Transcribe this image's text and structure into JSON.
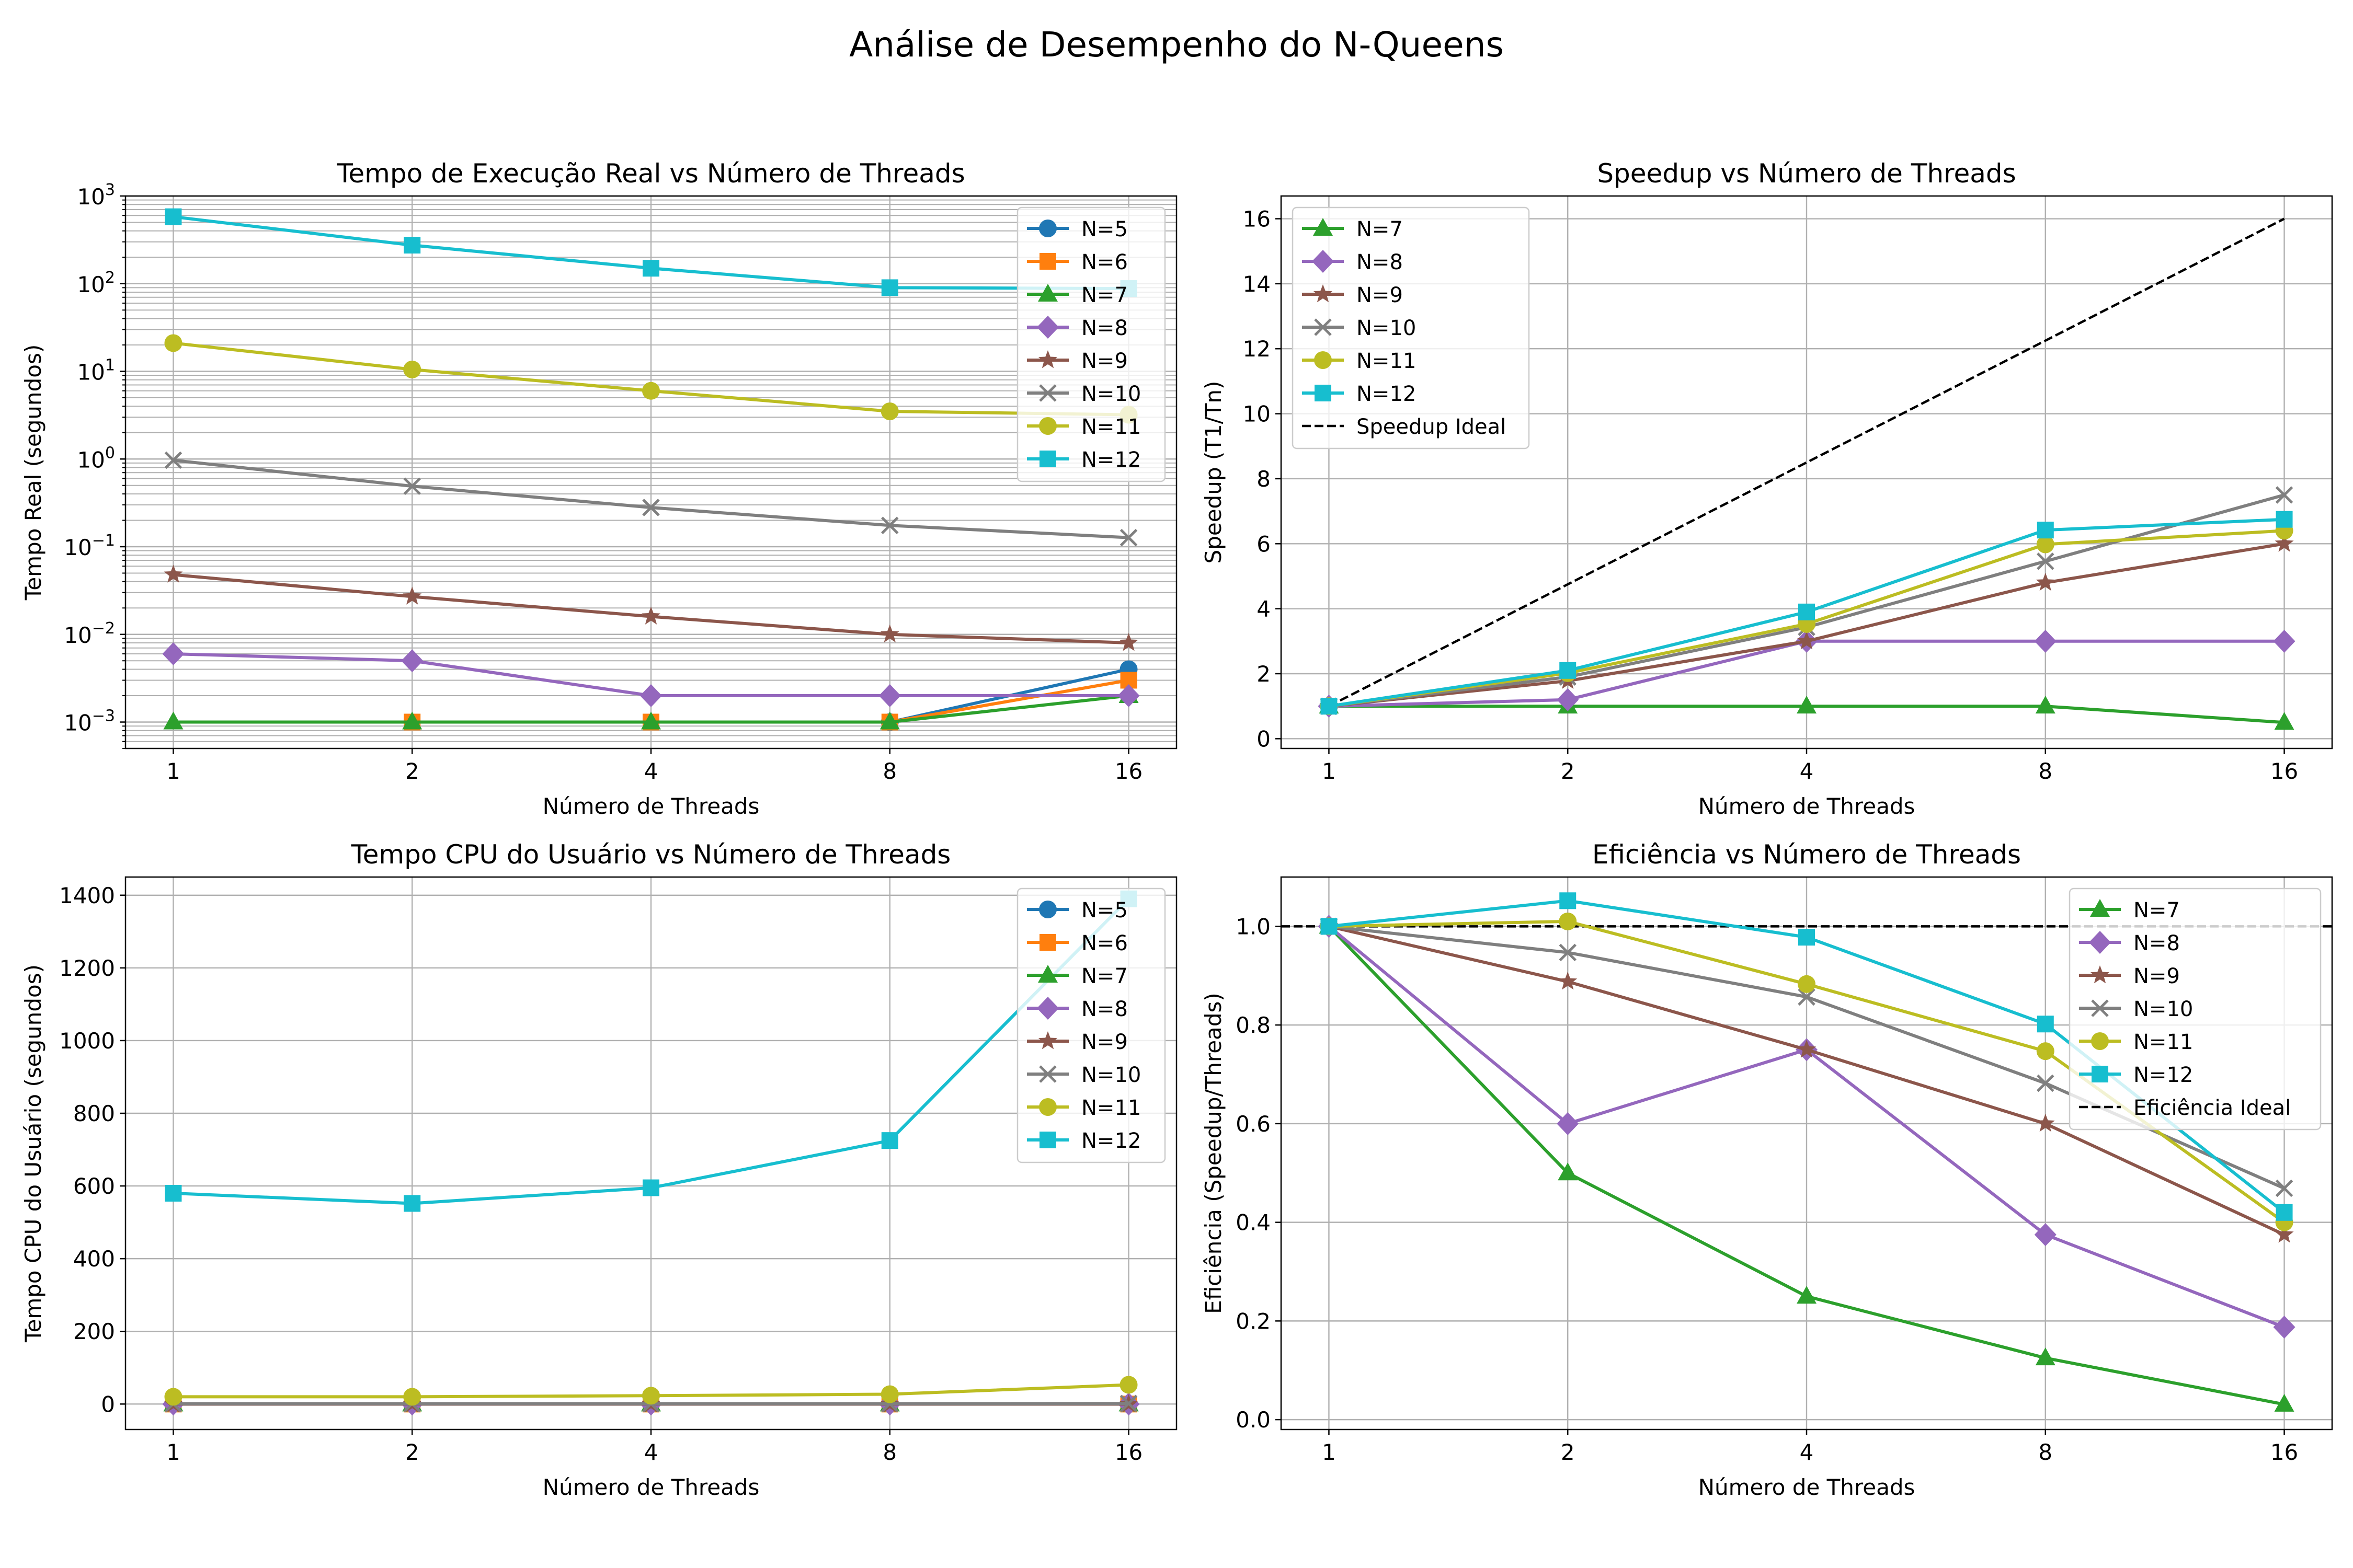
{
  "figure": {
    "suptitle": "Análise de Desempenho do N-Queens"
  },
  "colors": {
    "N=5": "#1f77b4",
    "N=6": "#ff7f0e",
    "N=7": "#2ca02c",
    "N=8": "#9467bd",
    "N=9": "#8c564b",
    "N=10": "#7f7f7f",
    "N=11": "#bcbd22",
    "N=12": "#17becf"
  },
  "markers": {
    "N=5": "circle",
    "N=6": "square",
    "N=7": "triangle",
    "N=8": "diamond",
    "N=9": "star",
    "N=10": "x",
    "N=11": "circle",
    "N=12": "square"
  },
  "chart_data": [
    {
      "type": "line",
      "title": "Tempo de Execução Real vs Número de Threads",
      "xlabel": "Número de Threads",
      "ylabel": "Tempo Real (segundos)",
      "xscale": "log2",
      "yscale": "log",
      "x": [
        1,
        2,
        4,
        8,
        16
      ],
      "xlim": [
        1,
        16
      ],
      "ylim": [
        0.0005,
        1000
      ],
      "yticks": [
        0.001,
        0.01,
        0.1,
        1,
        10,
        100,
        1000
      ],
      "yticklabels": [
        [
          "10",
          "−3"
        ],
        [
          "10",
          "−2"
        ],
        [
          "10",
          "−1"
        ],
        [
          "10",
          "0"
        ],
        [
          "10",
          "1"
        ],
        [
          "10",
          "2"
        ],
        [
          "10",
          "3"
        ]
      ],
      "grid": true,
      "legend": "upper right",
      "series": [
        {
          "name": "N=5",
          "values": [
            null,
            null,
            null,
            0.001,
            0.004
          ]
        },
        {
          "name": "N=6",
          "values": [
            null,
            0.001,
            0.001,
            0.001,
            0.003
          ]
        },
        {
          "name": "N=7",
          "values": [
            0.001,
            0.001,
            0.001,
            0.001,
            0.002
          ]
        },
        {
          "name": "N=8",
          "values": [
            0.006,
            0.005,
            0.002,
            0.002,
            0.002
          ]
        },
        {
          "name": "N=9",
          "values": [
            0.048,
            0.027,
            0.016,
            0.01,
            0.008
          ]
        },
        {
          "name": "N=10",
          "values": [
            0.97,
            0.49,
            0.28,
            0.175,
            0.127
          ]
        },
        {
          "name": "N=11",
          "values": [
            21,
            10.5,
            6.0,
            3.5,
            3.2
          ]
        },
        {
          "name": "N=12",
          "values": [
            580,
            275,
            150,
            90,
            88
          ]
        }
      ]
    },
    {
      "type": "line",
      "title": "Speedup vs Número de Threads",
      "xlabel": "Número de Threads",
      "ylabel": "Speedup (T1/Tn)",
      "xscale": "log2",
      "x": [
        1,
        2,
        4,
        8,
        16
      ],
      "xlim": [
        1,
        16
      ],
      "ylim": [
        -0.3,
        16.7
      ],
      "yticks": [
        0,
        2,
        4,
        6,
        8,
        10,
        12,
        14,
        16
      ],
      "grid": true,
      "legend": "upper left",
      "series": [
        {
          "name": "N=7",
          "values": [
            1,
            1,
            1,
            1,
            0.5
          ]
        },
        {
          "name": "N=8",
          "values": [
            1,
            1.2,
            3,
            3,
            3
          ]
        },
        {
          "name": "N=9",
          "values": [
            1,
            1.78,
            3.0,
            4.8,
            6.0
          ]
        },
        {
          "name": "N=10",
          "values": [
            1,
            1.9,
            3.43,
            5.46,
            7.5
          ]
        },
        {
          "name": "N=11",
          "values": [
            1,
            2.02,
            3.53,
            5.98,
            6.4
          ]
        },
        {
          "name": "N=12",
          "values": [
            1,
            2.1,
            3.9,
            6.42,
            6.75
          ]
        }
      ],
      "reference": {
        "name": "Speedup Ideal",
        "x": [
          1,
          16
        ],
        "values": [
          1,
          16
        ],
        "style": "dashed"
      }
    },
    {
      "type": "line",
      "title": "Tempo CPU do Usuário vs Número de Threads",
      "xlabel": "Número de Threads",
      "ylabel": "Tempo CPU do Usuário (segundos)",
      "xscale": "log2",
      "x": [
        1,
        2,
        4,
        8,
        16
      ],
      "xlim": [
        1,
        16
      ],
      "ylim": [
        -70,
        1450
      ],
      "yticks": [
        0,
        200,
        400,
        600,
        800,
        1000,
        1200,
        1400
      ],
      "grid": true,
      "legend": "upper right",
      "series": [
        {
          "name": "N=5",
          "values": [
            0,
            0,
            0,
            0,
            0
          ]
        },
        {
          "name": "N=6",
          "values": [
            0,
            0,
            0,
            0,
            0
          ]
        },
        {
          "name": "N=7",
          "values": [
            0,
            0,
            0,
            0,
            0
          ]
        },
        {
          "name": "N=8",
          "values": [
            0,
            0,
            0,
            0,
            0
          ]
        },
        {
          "name": "N=9",
          "values": [
            0,
            0,
            0,
            0,
            0
          ]
        },
        {
          "name": "N=10",
          "values": [
            1,
            1,
            1,
            1,
            1.5
          ]
        },
        {
          "name": "N=11",
          "values": [
            20,
            20,
            23,
            27,
            53
          ]
        },
        {
          "name": "N=12",
          "values": [
            580,
            552,
            595,
            725,
            1390
          ]
        }
      ]
    },
    {
      "type": "line",
      "title": "Eficiência vs Número de Threads",
      "xlabel": "Número de Threads",
      "ylabel": "Eficiência (Speedup/Threads)",
      "xscale": "log2",
      "x": [
        1,
        2,
        4,
        8,
        16
      ],
      "xlim": [
        1,
        16
      ],
      "ylim": [
        -0.02,
        1.1
      ],
      "yticks": [
        0.0,
        0.2,
        0.4,
        0.6,
        0.8,
        1.0
      ],
      "grid": true,
      "legend": "upper right",
      "series": [
        {
          "name": "N=7",
          "values": [
            1,
            0.5,
            0.25,
            0.125,
            0.031
          ]
        },
        {
          "name": "N=8",
          "values": [
            1,
            0.6,
            0.75,
            0.375,
            0.1875
          ]
        },
        {
          "name": "N=9",
          "values": [
            1,
            0.888,
            0.75,
            0.6,
            0.375
          ]
        },
        {
          "name": "N=10",
          "values": [
            1,
            0.947,
            0.857,
            0.682,
            0.469
          ]
        },
        {
          "name": "N=11",
          "values": [
            1,
            1.01,
            0.883,
            0.747,
            0.4
          ]
        },
        {
          "name": "N=12",
          "values": [
            1,
            1.052,
            0.978,
            0.802,
            0.42
          ]
        }
      ],
      "reference": {
        "name": "Eficiência Ideal",
        "value": 1.0,
        "style": "dashed",
        "span": "full"
      }
    }
  ]
}
